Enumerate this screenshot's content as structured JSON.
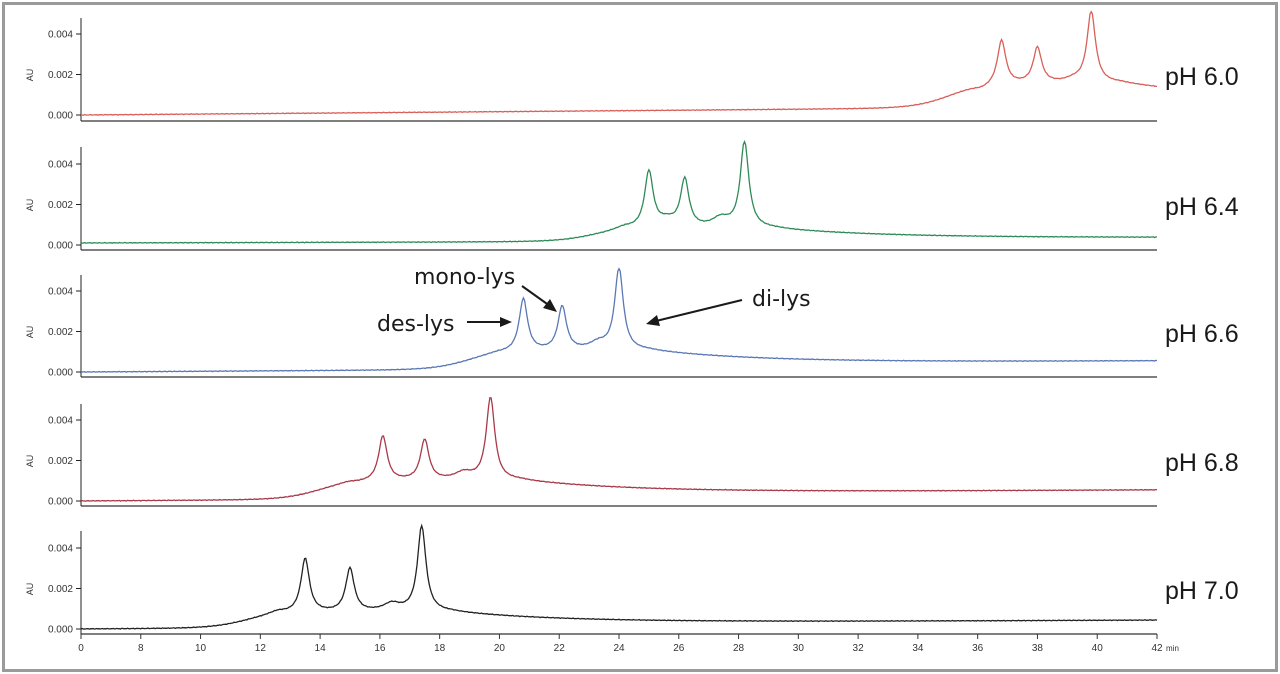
{
  "chart_data": {
    "type": "line",
    "title": "",
    "xlabel": "min",
    "ylabel": "AU",
    "x_ticks": [
      "0",
      "8",
      "10",
      "12",
      "14",
      "16",
      "18",
      "20",
      "22",
      "24",
      "26",
      "28",
      "30",
      "32",
      "34",
      "36",
      "38",
      "40",
      "42"
    ],
    "y_ticks": [
      "0.000",
      "0.002",
      "0.004"
    ],
    "xlim": [
      6,
      42
    ],
    "ylim": [
      0,
      0.005
    ],
    "grid": false,
    "legend": "none",
    "note": "Stacked chromatograms; x-axis has a break — the '0' tick sits at the position of 6 min.",
    "series": [
      {
        "name": "pH 6.0",
        "color": "#d9605a",
        "baseline_start": 0.0,
        "baseline_end": 0.0007,
        "peaks": [
          {
            "x": 36.1,
            "y": 0.0009,
            "label": ""
          },
          {
            "x": 36.8,
            "y": 0.0034,
            "label": ""
          },
          {
            "x": 38.0,
            "y": 0.003,
            "label": ""
          },
          {
            "x": 39.2,
            "y": 0.0015,
            "label": ""
          },
          {
            "x": 39.8,
            "y": 0.0048,
            "label": ""
          }
        ]
      },
      {
        "name": "pH 6.4",
        "color": "#2e8b57",
        "baseline_start": 0.0001,
        "baseline_end": 0.0003,
        "peaks": [
          {
            "x": 24.2,
            "y": 0.0008,
            "label": ""
          },
          {
            "x": 25.0,
            "y": 0.0034,
            "label": ""
          },
          {
            "x": 25.6,
            "y": 0.0012,
            "label": ""
          },
          {
            "x": 26.2,
            "y": 0.003,
            "label": ""
          },
          {
            "x": 27.4,
            "y": 0.0014,
            "label": ""
          },
          {
            "x": 28.2,
            "y": 0.0049,
            "label": ""
          }
        ]
      },
      {
        "name": "pH 6.6",
        "color": "#5a78b5",
        "baseline_start": 0.0,
        "baseline_end": 0.0005,
        "peaks": [
          {
            "x": 20.0,
            "y": 0.0008,
            "label": ""
          },
          {
            "x": 20.8,
            "y": 0.0034,
            "label": "des-lys"
          },
          {
            "x": 22.1,
            "y": 0.003,
            "label": "mono-lys"
          },
          {
            "x": 23.3,
            "y": 0.0014,
            "label": ""
          },
          {
            "x": 24.0,
            "y": 0.0049,
            "label": "di-lys"
          }
        ]
      },
      {
        "name": "pH 6.8",
        "color": "#a83a4a",
        "baseline_start": 0.0,
        "baseline_end": 0.0005,
        "peaks": [
          {
            "x": 15.0,
            "y": 0.0008,
            "label": ""
          },
          {
            "x": 16.1,
            "y": 0.003,
            "label": ""
          },
          {
            "x": 17.5,
            "y": 0.0028,
            "label": ""
          },
          {
            "x": 18.8,
            "y": 0.0014,
            "label": ""
          },
          {
            "x": 19.7,
            "y": 0.0049,
            "label": ""
          }
        ]
      },
      {
        "name": "pH 7.0",
        "color": "#222222",
        "baseline_start": 0.0,
        "baseline_end": 0.0004,
        "peaks": [
          {
            "x": 12.6,
            "y": 0.0008,
            "label": ""
          },
          {
            "x": 13.5,
            "y": 0.0033,
            "label": ""
          },
          {
            "x": 15.0,
            "y": 0.0028,
            "label": ""
          },
          {
            "x": 16.4,
            "y": 0.0013,
            "label": ""
          },
          {
            "x": 17.4,
            "y": 0.0049,
            "label": ""
          }
        ]
      }
    ],
    "annotations": [
      {
        "text": "des-lys",
        "panel": "pH 6.6",
        "arrow_to_x": 20.8
      },
      {
        "text": "mono-lys",
        "panel": "pH 6.6",
        "arrow_to_x": 22.1
      },
      {
        "text": "di-lys",
        "panel": "pH 6.6",
        "arrow_to_x": 24.0
      }
    ]
  },
  "panels": [
    {
      "label": "pH 6.0",
      "y_axis_title": "AU"
    },
    {
      "label": "pH 6.4",
      "y_axis_title": "AU"
    },
    {
      "label": "pH 6.6",
      "y_axis_title": "AU"
    },
    {
      "label": "pH 6.8",
      "y_axis_title": "AU"
    },
    {
      "label": "pH 7.0",
      "y_axis_title": "AU"
    }
  ],
  "annotations": {
    "des_lys": "des-lys",
    "mono_lys": "mono-lys",
    "di_lys": "di-lys"
  },
  "x_axis_unit": "min"
}
